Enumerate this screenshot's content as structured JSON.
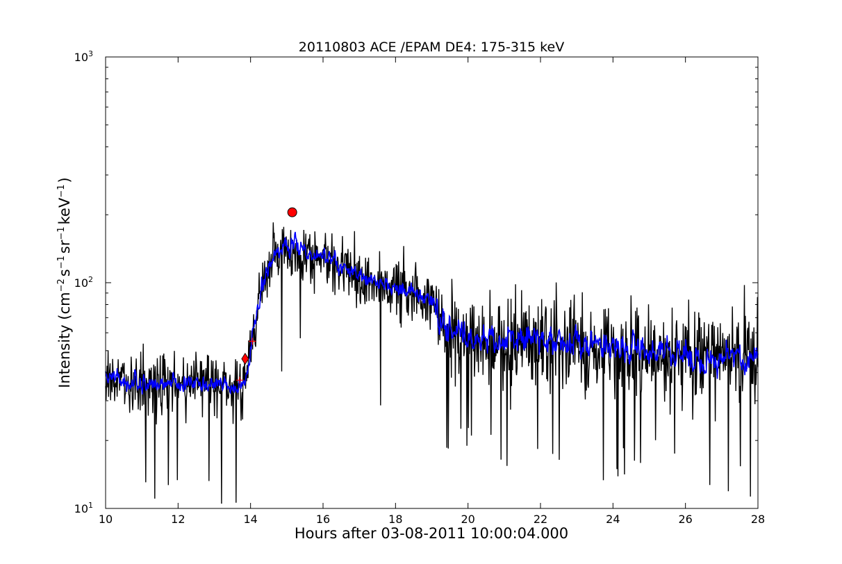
{
  "chart_data": {
    "type": "line",
    "title": "20110803 ACE /EPAM DE4: 175-315 keV",
    "xlabel": "Hours after 03-08-2011 10:00:04.000",
    "ylabel_main": "Intensity (cm",
    "ylabel_sup1": "−2",
    "ylabel_s": "s",
    "ylabel_sup2": "−1",
    "ylabel_sr": "sr",
    "ylabel_sup3": "−1",
    "ylabel_kev": "keV",
    "ylabel_sup4": "−1",
    "ylabel_close": ")",
    "xlim": [
      10,
      28
    ],
    "ylim": [
      10,
      1000
    ],
    "yscale": "log",
    "grid": false,
    "xticks": [
      "10",
      "12",
      "14",
      "16",
      "18",
      "20",
      "22",
      "24",
      "26",
      "28"
    ],
    "yticks": [
      {
        "base": "10",
        "exp": "1"
      },
      {
        "base": "10",
        "exp": "2"
      },
      {
        "base": "10",
        "exp": "3"
      }
    ],
    "colors": {
      "raw": "#000000",
      "smoothed": "#0000ff",
      "marker": "#ff0000"
    },
    "series": [
      {
        "role": "raw",
        "x": [
          10.0,
          10.5,
          11.0,
          11.5,
          12.0,
          12.5,
          13.0,
          13.5,
          13.75,
          13.9,
          14.0,
          14.2,
          14.4,
          14.6,
          14.8,
          15.0,
          15.15,
          15.4,
          15.7,
          16.0,
          16.3,
          16.6,
          17.0,
          17.5,
          18.0,
          18.5,
          19.0,
          19.2,
          19.6,
          20.0,
          20.5,
          21.0,
          21.5,
          22.0,
          22.5,
          23.0,
          23.5,
          24.0,
          24.5,
          25.0,
          25.5,
          26.0,
          26.5,
          27.0,
          27.5,
          28.0
        ],
        "y": [
          38,
          36,
          35,
          37,
          36,
          35,
          36,
          34,
          34,
          40,
          55,
          75,
          110,
          130,
          140,
          145,
          150,
          140,
          130,
          128,
          122,
          115,
          108,
          100,
          95,
          90,
          85,
          65,
          60,
          58,
          55,
          55,
          55,
          55,
          55,
          54,
          53,
          52,
          50,
          50,
          49,
          48,
          47,
          46,
          46,
          45
        ]
      },
      {
        "role": "smoothed",
        "x": [
          10.0,
          10.5,
          11.0,
          11.5,
          12.0,
          12.5,
          13.0,
          13.5,
          13.75,
          13.9,
          14.0,
          14.2,
          14.4,
          14.6,
          14.8,
          15.0,
          15.15,
          15.4,
          15.7,
          16.0,
          16.3,
          16.6,
          17.0,
          17.5,
          18.0,
          18.5,
          19.0,
          19.2,
          19.6,
          20.0,
          20.5,
          21.0,
          21.5,
          22.0,
          22.5,
          23.0,
          23.5,
          24.0,
          24.5,
          25.0,
          25.5,
          26.0,
          26.5,
          27.0,
          27.5,
          28.0
        ],
        "y": [
          38,
          36,
          35,
          37,
          36,
          35,
          36,
          34,
          34,
          40,
          55,
          75,
          110,
          130,
          140,
          145,
          150,
          140,
          130,
          128,
          122,
          115,
          108,
          100,
          95,
          90,
          85,
          65,
          60,
          58,
          55,
          55,
          55,
          55,
          55,
          54,
          53,
          52,
          50,
          50,
          49,
          48,
          47,
          46,
          46,
          45
        ]
      }
    ],
    "markers": [
      {
        "shape": "circle",
        "x": 15.15,
        "y": 205
      },
      {
        "shape": "diamond",
        "x": 13.85,
        "y": 46
      },
      {
        "shape": "cross",
        "x": 13.7,
        "y": 37
      },
      {
        "shape": "cross",
        "x": 14.05,
        "y": 55
      }
    ]
  }
}
